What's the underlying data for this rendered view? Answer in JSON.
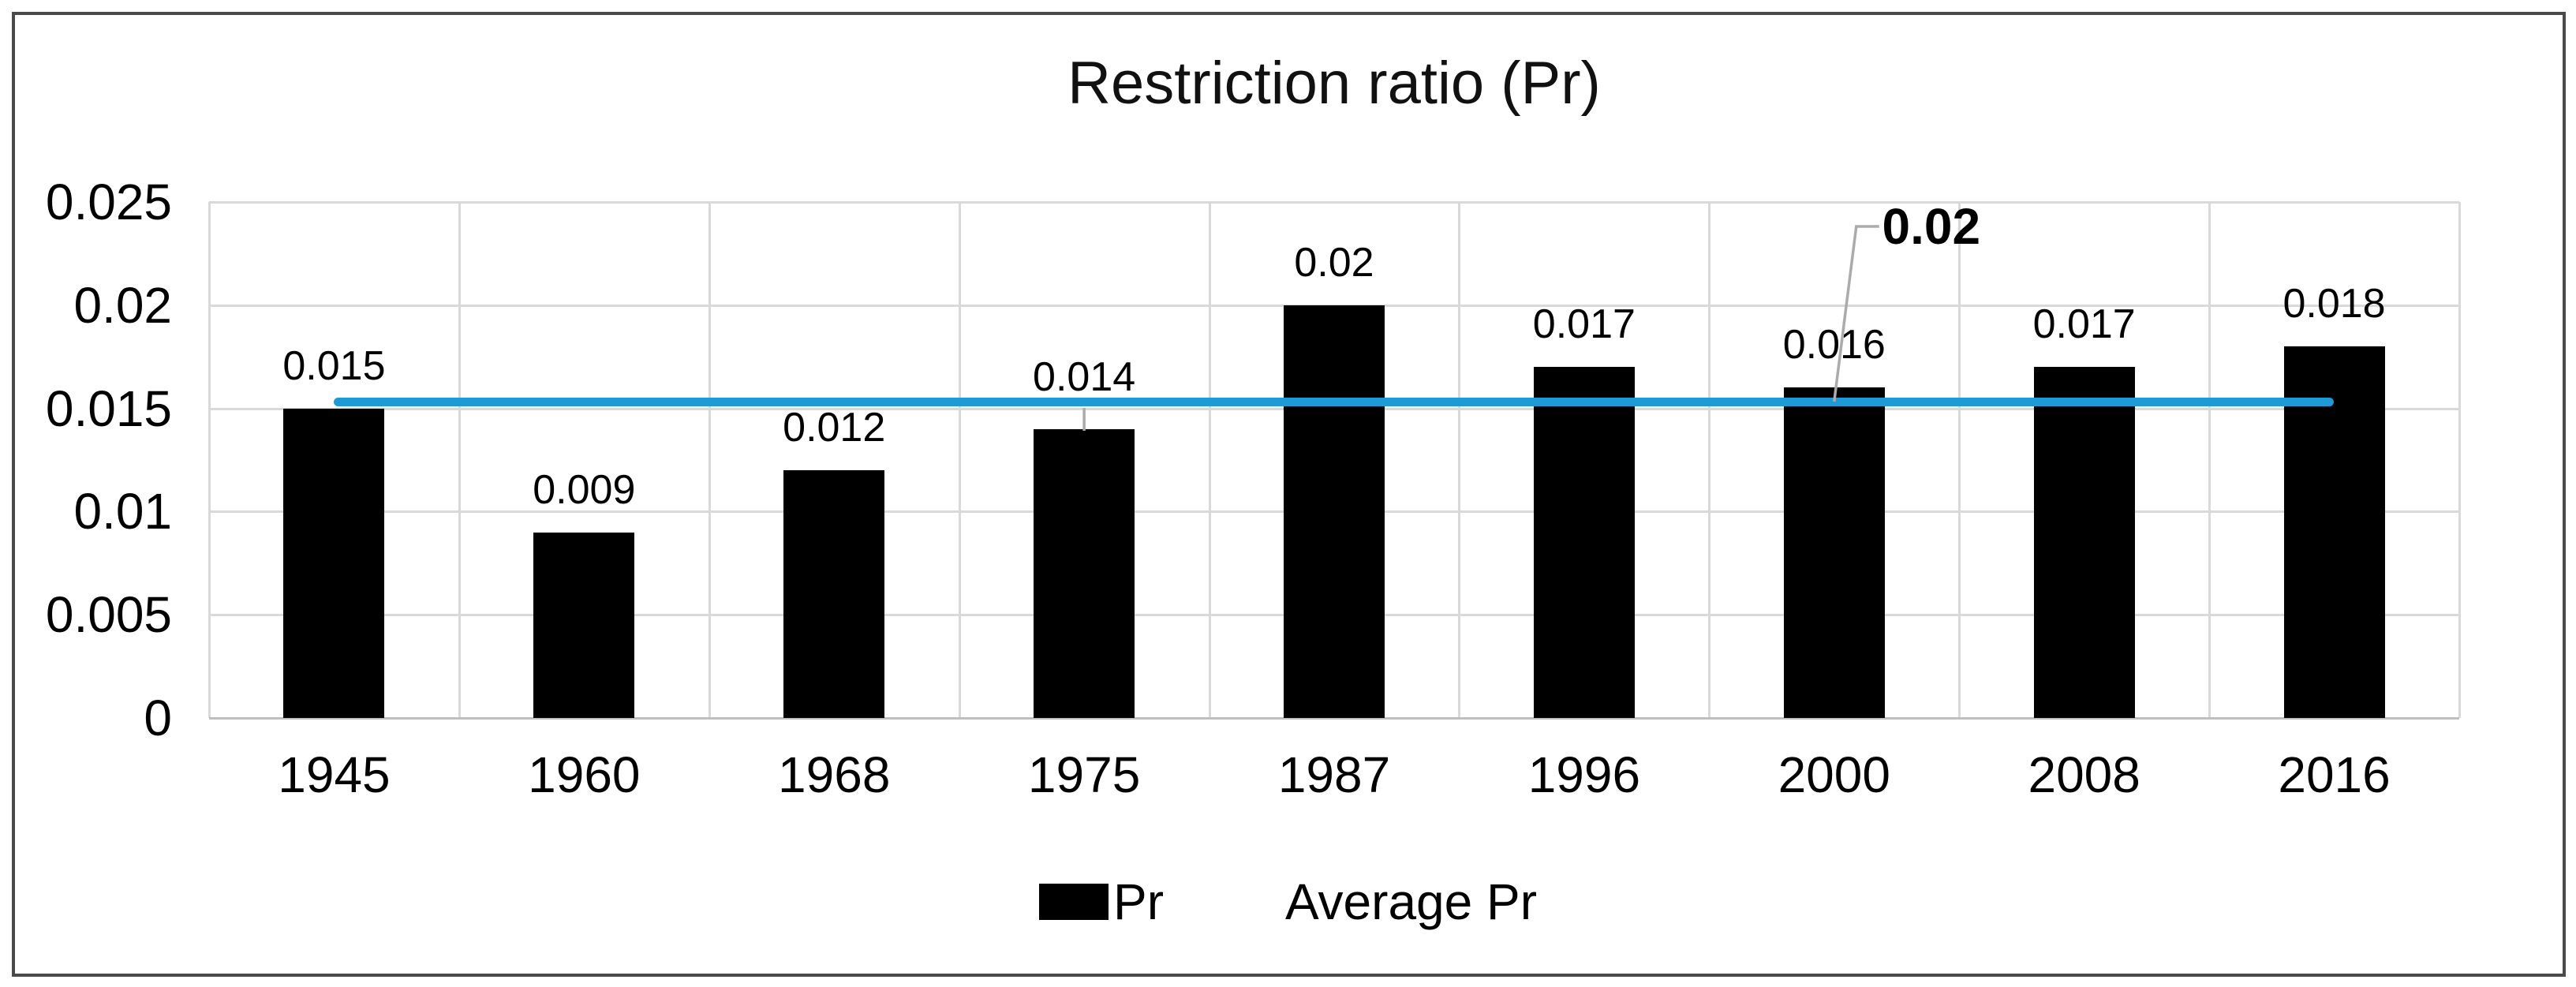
{
  "chart": {
    "title": "Restriction ratio (Pr)"
  },
  "legend": {
    "items": [
      {
        "label": "Pr",
        "swatch": "bar-square",
        "color": "#000000"
      },
      {
        "label": "Average Pr",
        "swatch": "line",
        "color": "#1e9ad6"
      }
    ]
  },
  "colors": {
    "bar": "#000000",
    "average_line": "#1e9ad6",
    "gridline": "#d9d9d9",
    "axis_line": "#bfbfbf",
    "leader_line": "#ababab",
    "text": "#000000",
    "frame_border": "#4a4a4a"
  },
  "chart_data": {
    "type": "bar",
    "title": "Restriction ratio (Pr)",
    "categories": [
      "1945",
      "1960",
      "1968",
      "1975",
      "1987",
      "1996",
      "2000",
      "2008",
      "2016"
    ],
    "series": [
      {
        "name": "Pr",
        "type": "bar",
        "color": "#000000",
        "values": [
          0.015,
          0.009,
          0.012,
          0.014,
          0.02,
          0.017,
          0.016,
          0.017,
          0.018
        ],
        "data_labels": [
          "0.015",
          "0.009",
          "0.012",
          "0.014",
          "0.02",
          "0.017",
          "0.016",
          "0.017",
          "0.018"
        ]
      },
      {
        "name": "Average Pr",
        "type": "line",
        "color": "#1e9ad6",
        "value": 0.01533,
        "spans": "from first category center to last category center"
      }
    ],
    "xlabel": "",
    "ylabel": "",
    "ylim": [
      0,
      0.025
    ],
    "ytick_step": 0.005,
    "ytick_labels": [
      "0",
      "0.005",
      "0.01",
      "0.015",
      "0.02",
      "0.025"
    ],
    "grid": true,
    "legend_position": "bottom",
    "annotations": [
      {
        "type": "callout-label",
        "text": "0.02",
        "bold": true,
        "target_category": "2000",
        "attached_to": "average line at category 2000",
        "leader_line": true
      },
      {
        "type": "lifted-label",
        "category": "1975",
        "text": "0.014",
        "note": "data label moved above the average line, connected to bar top by a short vertical leader line"
      }
    ]
  }
}
